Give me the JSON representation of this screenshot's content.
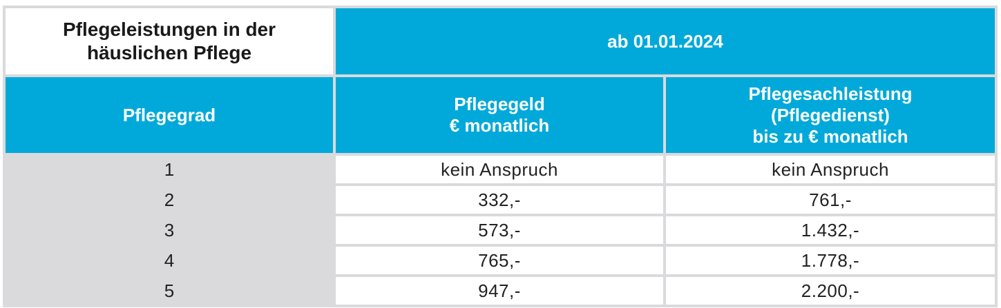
{
  "header": {
    "title": [
      "Pflegeleistungen in der",
      "häuslichen Pflege"
    ],
    "period": "ab 01.01.2024"
  },
  "columns": [
    [
      "Pflegegrad"
    ],
    [
      "Pflegegeld",
      "€ monatlich"
    ],
    [
      "Pflegesachleistung",
      "(Pflegedienst)",
      "bis zu € monatlich"
    ]
  ],
  "rows": [
    [
      "1",
      "kein Anspruch",
      "kein Anspruch"
    ],
    [
      "2",
      "332,-",
      "761,-"
    ],
    [
      "3",
      "573,-",
      "1.432,-"
    ],
    [
      "4",
      "765,-",
      "1.778,-"
    ],
    [
      "5",
      "947,-",
      "2.200,-"
    ]
  ]
}
